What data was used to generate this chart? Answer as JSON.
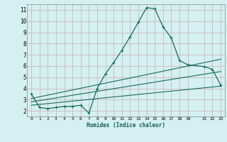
{
  "xlabel": "Humidex (Indice chaleur)",
  "bg_color": "#d4f0f0",
  "grid_color": "#ccb8b8",
  "line_color": "#1a6b5a",
  "xlim": [
    -0.5,
    23.5
  ],
  "ylim": [
    1.5,
    11.5
  ],
  "xticks": [
    0,
    1,
    2,
    3,
    4,
    5,
    6,
    7,
    8,
    9,
    10,
    11,
    12,
    13,
    14,
    15,
    16,
    17,
    18,
    19,
    21,
    22,
    23
  ],
  "yticks": [
    2,
    3,
    4,
    5,
    6,
    7,
    8,
    9,
    10,
    11
  ],
  "main_x": [
    0,
    1,
    2,
    3,
    4,
    5,
    6,
    7,
    8,
    9,
    10,
    11,
    12,
    13,
    14,
    15,
    16,
    17,
    18,
    19,
    21,
    22,
    23
  ],
  "main_y": [
    3.5,
    2.3,
    2.2,
    2.3,
    2.4,
    2.4,
    2.5,
    1.8,
    4.0,
    5.3,
    6.3,
    7.4,
    8.6,
    9.9,
    11.2,
    11.1,
    9.5,
    8.5,
    6.5,
    6.1,
    5.95,
    5.7,
    4.3
  ],
  "line2_x": [
    0,
    23
  ],
  "line2_y": [
    2.8,
    5.5
  ],
  "line3_x": [
    0,
    23
  ],
  "line3_y": [
    2.5,
    4.2
  ],
  "line4_x": [
    0,
    23
  ],
  "line4_y": [
    3.1,
    6.6
  ]
}
